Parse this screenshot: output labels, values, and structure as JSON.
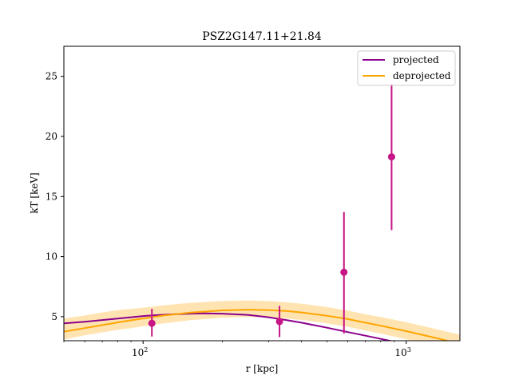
{
  "chart_data": {
    "type": "line",
    "title": "PSZ2G147.11+21.84",
    "xlabel": "r [kpc]",
    "ylabel": "kT [keV]",
    "xscale": "log",
    "xlim": [
      50,
      1600
    ],
    "ylim": [
      3.0,
      27.5
    ],
    "x_tick_labels": [
      {
        "value": 100,
        "label": "10",
        "sup": "2"
      },
      {
        "value": 1000,
        "label": "10",
        "sup": "3"
      }
    ],
    "y_ticks": [
      5,
      10,
      15,
      20,
      25
    ],
    "legend": {
      "position": "top-right",
      "entries": [
        {
          "label": "projected",
          "color": "#8b008b"
        },
        {
          "label": "deprojected",
          "color": "#ffa500"
        }
      ]
    },
    "series": [
      {
        "name": "projected",
        "color": "#8b008b",
        "x": [
          50,
          60,
          70,
          80,
          90,
          100,
          110,
          130,
          150,
          170,
          200,
          250,
          300,
          350,
          400,
          500,
          600,
          700,
          800,
          900,
          1000
        ],
        "y": [
          4.45,
          4.58,
          4.72,
          4.84,
          4.95,
          5.05,
          5.12,
          5.2,
          5.25,
          5.27,
          5.25,
          5.15,
          4.95,
          4.72,
          4.5,
          4.08,
          3.72,
          3.42,
          3.15,
          2.92,
          2.72
        ]
      },
      {
        "name": "deprojected",
        "color": "#ffa500",
        "x": [
          50,
          60,
          70,
          80,
          90,
          100,
          120,
          150,
          200,
          250,
          300,
          350,
          400,
          500,
          600,
          700,
          800,
          1000,
          1200,
          1400,
          1600
        ],
        "y": [
          3.75,
          4.05,
          4.3,
          4.52,
          4.7,
          4.85,
          5.1,
          5.33,
          5.52,
          5.58,
          5.55,
          5.47,
          5.35,
          5.08,
          4.8,
          4.5,
          4.25,
          3.8,
          3.4,
          3.05,
          2.75
        ],
        "band_lower": [
          3.1,
          3.45,
          3.7,
          3.9,
          4.05,
          4.2,
          4.45,
          4.7,
          4.92,
          4.98,
          4.95,
          4.85,
          4.72,
          4.45,
          4.15,
          3.85,
          3.6,
          3.12,
          2.7,
          2.35,
          2.05
        ],
        "band_upper": [
          4.85,
          5.1,
          5.35,
          5.55,
          5.65,
          5.75,
          5.95,
          6.15,
          6.3,
          6.35,
          6.3,
          6.2,
          6.08,
          5.8,
          5.5,
          5.2,
          4.98,
          4.55,
          4.15,
          3.8,
          3.5
        ]
      }
    ],
    "points": {
      "color": "#c71585",
      "data": [
        {
          "x": 108,
          "y": 4.45,
          "yerr_low": 1.1,
          "yerr_high": 1.2
        },
        {
          "x": 330,
          "y": 4.6,
          "yerr_low": 1.3,
          "yerr_high": 1.3
        },
        {
          "x": 580,
          "y": 8.7,
          "yerr_low": 5.1,
          "yerr_high": 5.0
        },
        {
          "x": 880,
          "y": 18.3,
          "yerr_low": 6.1,
          "yerr_high": 6.1
        }
      ]
    }
  }
}
